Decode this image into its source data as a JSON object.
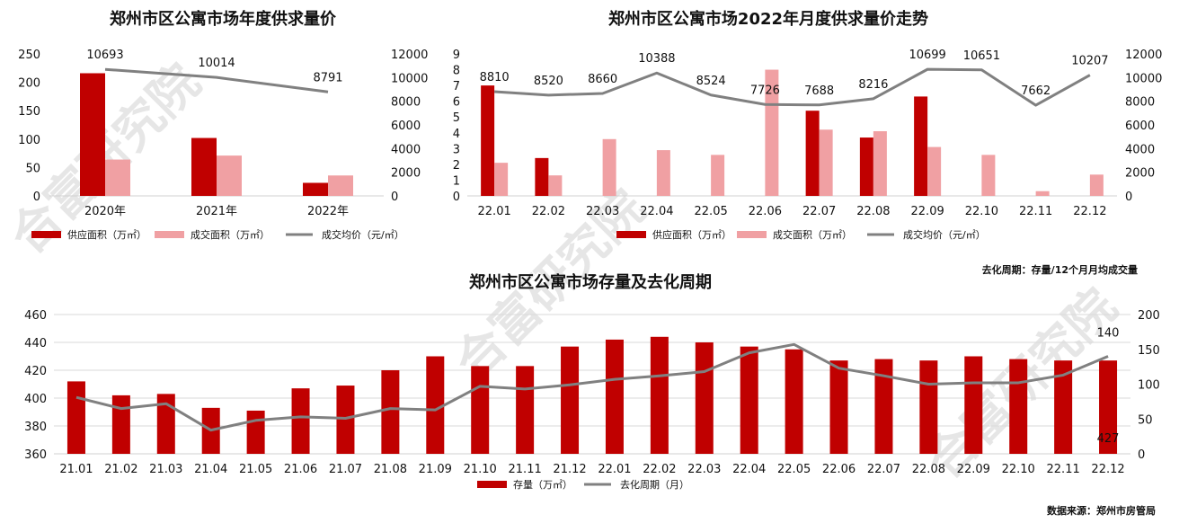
{
  "watermark": "合富研究院",
  "source_note": "数据来源：郑州市房管局",
  "colors": {
    "supply": "#c00000",
    "deal": "#f0a0a3",
    "line": "#808080"
  },
  "chart_data": [
    {
      "id": "annual",
      "type": "bar",
      "title": "郑州市区公寓市场年度供求量价",
      "categories": [
        "2020年",
        "2021年",
        "2022年"
      ],
      "series": [
        {
          "name": "供应面积（万㎡）",
          "kind": "bar",
          "axis": "left",
          "values": [
            216,
            102,
            23
          ]
        },
        {
          "name": "成交面积（万㎡）",
          "kind": "bar",
          "axis": "left",
          "values": [
            64,
            71,
            36
          ]
        },
        {
          "name": "成交均价（元/㎡）",
          "kind": "line",
          "axis": "right",
          "values": [
            10693,
            10014,
            8791
          ]
        }
      ],
      "y_left": {
        "min": 0,
        "max": 250,
        "ticks": [
          0,
          50,
          100,
          150,
          200,
          250
        ]
      },
      "y_right": {
        "min": 0,
        "max": 12000,
        "ticks": [
          0,
          2000,
          4000,
          6000,
          8000,
          10000,
          12000
        ]
      },
      "grid": false
    },
    {
      "id": "monthly2022",
      "type": "bar",
      "title": "郑州市区公寓市场2022年月度供求量价走势",
      "categories": [
        "22.01",
        "22.02",
        "22.03",
        "22.04",
        "22.05",
        "22.06",
        "22.07",
        "22.08",
        "22.09",
        "22.10",
        "22.11",
        "22.12"
      ],
      "series": [
        {
          "name": "供应面积（万㎡）",
          "kind": "bar",
          "axis": "left",
          "values": [
            7.0,
            2.4,
            0,
            0,
            0,
            0,
            5.4,
            3.7,
            6.3,
            0,
            0,
            0
          ]
        },
        {
          "name": "成交面积（万㎡）",
          "kind": "bar",
          "axis": "left",
          "values": [
            2.1,
            1.3,
            3.6,
            2.9,
            2.6,
            8.0,
            4.2,
            4.1,
            3.1,
            2.6,
            0.3,
            1.35
          ]
        },
        {
          "name": "成交均价（元/㎡）",
          "kind": "line",
          "axis": "right",
          "values": [
            8810,
            8520,
            8660,
            10388,
            8524,
            7726,
            7688,
            8216,
            10699,
            10651,
            7662,
            10207
          ]
        }
      ],
      "y_left": {
        "min": 0,
        "max": 9,
        "ticks": [
          0,
          1,
          2,
          3,
          4,
          5,
          6,
          7,
          8,
          9
        ]
      },
      "y_right": {
        "min": 0,
        "max": 12000,
        "ticks": [
          0,
          2000,
          4000,
          6000,
          8000,
          10000,
          12000
        ]
      },
      "grid": false
    },
    {
      "id": "inventory",
      "type": "bar",
      "title": "郑州市区公寓市场存量及去化周期",
      "note": "去化周期：存量/12个月月均成交量",
      "categories": [
        "21.01",
        "21.02",
        "21.03",
        "21.04",
        "21.05",
        "21.06",
        "21.07",
        "21.08",
        "21.09",
        "21.10",
        "21.11",
        "21.12",
        "22.01",
        "22.02",
        "22.03",
        "22.04",
        "22.05",
        "22.06",
        "22.07",
        "22.08",
        "22.09",
        "22.10",
        "22.11",
        "22.12"
      ],
      "series": [
        {
          "name": "存量（万㎡）",
          "kind": "bar",
          "axis": "left",
          "values": [
            412,
            402,
            403,
            393,
            391,
            407,
            409,
            420,
            430,
            423,
            423,
            437,
            442,
            444,
            440,
            437,
            435,
            427,
            428,
            427,
            430,
            428,
            427,
            427
          ]
        },
        {
          "name": "去化周期（月）",
          "kind": "line",
          "axis": "right",
          "values": [
            81,
            65,
            72,
            34,
            48,
            53,
            51,
            65,
            63,
            97,
            93,
            99,
            107,
            112,
            118,
            145,
            157,
            123,
            112,
            100,
            102,
            102,
            113,
            140
          ]
        }
      ],
      "y_left": {
        "min": 360,
        "max": 460,
        "ticks": [
          360,
          380,
          400,
          420,
          440,
          460
        ]
      },
      "y_right": {
        "min": 0,
        "max": 200,
        "ticks": [
          0,
          50,
          100,
          150,
          200
        ]
      },
      "data_labels": {
        "last_bar": "427",
        "last_line": "140"
      },
      "grid": true
    }
  ]
}
